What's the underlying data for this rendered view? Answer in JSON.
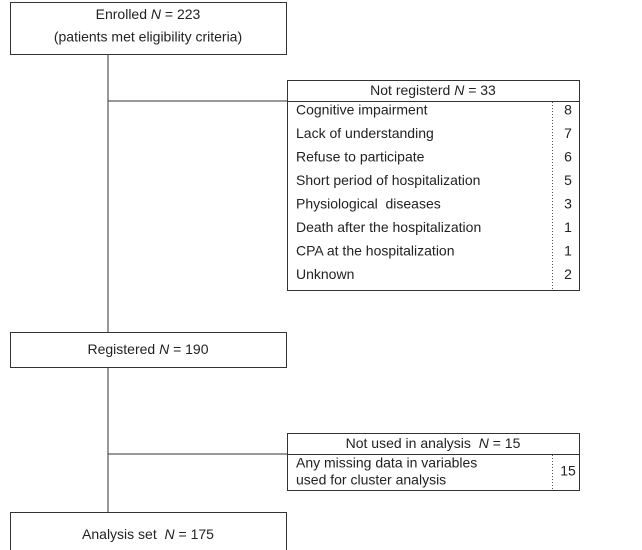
{
  "enrolled": {
    "label": "Enrolled",
    "symbol": "N",
    "value": "= 223",
    "note": "(patients met eligibility criteria)"
  },
  "not_registered": {
    "title": "Not registerd",
    "symbol": "N",
    "value": "= 33",
    "rows": [
      [
        "Cognitive impairment",
        8
      ],
      [
        "Lack of understanding",
        7
      ],
      [
        "Refuse to participate",
        6
      ],
      [
        "Short period of hospitalization",
        5
      ],
      [
        "Physiological  diseases",
        3
      ],
      [
        "Death after the hospitalization",
        1
      ],
      [
        "CPA at the hospitalization",
        1
      ],
      [
        "Unknown",
        2
      ]
    ]
  },
  "registered": {
    "label": "Registered",
    "symbol": "N",
    "value": "= 190"
  },
  "not_used": {
    "title": "Not used in analysis",
    "symbol": "N",
    "value": "= 15",
    "rows": [
      [
        [
          "Any missing data in variables",
          "used for cluster analysis"
        ],
        15
      ]
    ]
  },
  "analysis": {
    "label": "Analysis set",
    "symbol": "N",
    "value": "= 175"
  }
}
